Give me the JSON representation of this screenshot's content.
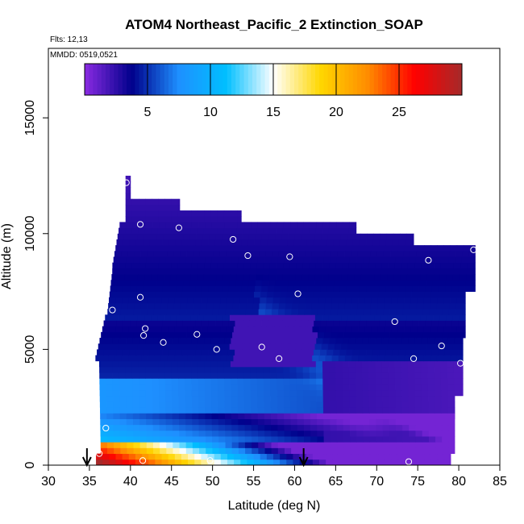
{
  "chart_data": {
    "type": "heatmap",
    "title": "ATOM4 Northeast_Pacific_2 Extinction_SOAP",
    "subtitle_flights": "Flts: 12,13",
    "subtitle_dates": "MMDD: 0519,0521",
    "xlabel": "Latitude (deg N)",
    "ylabel": "Altitude (m)",
    "xlim": [
      30,
      85
    ],
    "ylim": [
      0,
      18000
    ],
    "x_ticks": [
      30,
      35,
      40,
      45,
      50,
      55,
      60,
      65,
      70,
      75,
      80,
      85
    ],
    "y_ticks": [
      0,
      5000,
      10000,
      15000
    ],
    "colorbar": {
      "range": [
        0,
        30
      ],
      "ticks": [
        5,
        10,
        15,
        20,
        25
      ],
      "colors": [
        "#8a2be2",
        "#00008b",
        "#1e90ff",
        "#00bfff",
        "#ffffff",
        "#ffd700",
        "#ff8c00",
        "#ff0000",
        "#a52a2a"
      ]
    },
    "profile_points": [
      [
        39.5,
        12200
      ],
      [
        41.2,
        10400
      ],
      [
        45.9,
        10250
      ],
      [
        52.5,
        9750
      ],
      [
        54.3,
        9050
      ],
      [
        59.4,
        9000
      ],
      [
        76.3,
        8850
      ],
      [
        81.8,
        9300
      ],
      [
        37.8,
        6700
      ],
      [
        41.2,
        7250
      ],
      [
        60.4,
        7400
      ],
      [
        72.2,
        6200
      ],
      [
        41.8,
        5900
      ],
      [
        41.6,
        5600
      ],
      [
        44.0,
        5300
      ],
      [
        48.1,
        5650
      ],
      [
        50.5,
        5000
      ],
      [
        56.0,
        5100
      ],
      [
        58.1,
        4600
      ],
      [
        74.5,
        4600
      ],
      [
        77.9,
        5150
      ],
      [
        80.2,
        4400
      ],
      [
        35.5,
        4100
      ],
      [
        37.0,
        1600
      ],
      [
        36.2,
        500
      ],
      [
        41.5,
        200
      ],
      [
        49.7,
        200
      ],
      [
        73.9,
        150
      ],
      [
        79.5,
        150
      ]
    ],
    "arrows_lat": [
      34.7,
      61.1
    ]
  }
}
